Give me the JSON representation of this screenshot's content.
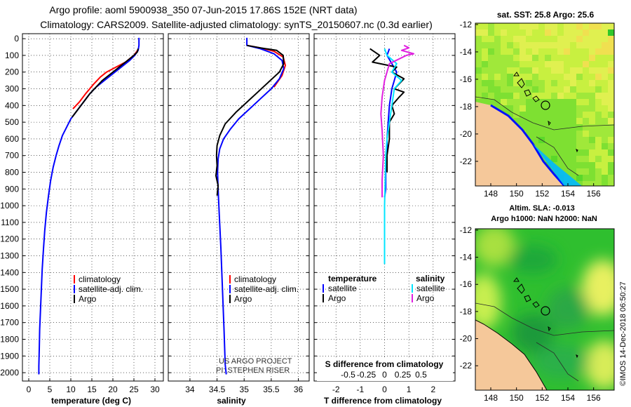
{
  "header": {
    "title_line1": "Argo profile: aoml 5900938_350 07-Jun-2015 17.86S 152E (NRT data)",
    "title_line2": "Climatology: CARS2009. Satellite-adjusted climatology: synTS_20150607.nc (0.3d earlier)"
  },
  "colors": {
    "climatology": "#ff0000",
    "satellite": "#0000ff",
    "argo": "#000000",
    "sal_satellite": "#00e5ff",
    "sal_argo": "#e020e0",
    "land": "#f5c89a",
    "sea_shallow": "#00d8ff"
  },
  "depth_axis": {
    "ticks": [
      0,
      100,
      200,
      300,
      400,
      500,
      600,
      700,
      800,
      900,
      1000,
      1100,
      1200,
      1300,
      1400,
      1500,
      1600,
      1700,
      1800,
      1900,
      2000
    ]
  },
  "chart_data": [
    {
      "type": "line",
      "name": "temperature",
      "xlabel": "temperature (deg C)",
      "xlim": [
        -1.5,
        32
      ],
      "ylim": [
        2050,
        -30
      ],
      "xticks": [
        0,
        5,
        10,
        15,
        20,
        25,
        30
      ],
      "legend": [
        "climatology",
        "satellite-adj. clim.",
        "Argo"
      ],
      "series": [
        {
          "name": "climatology",
          "color": "#ff0000",
          "x": [
            26,
            25,
            24,
            23,
            21.5,
            20,
            18.5,
            17,
            15.5,
            13.5,
            12,
            10.5
          ],
          "y": [
            65,
            100,
            120,
            140,
            160,
            180,
            200,
            230,
            270,
            330,
            380,
            420
          ]
        },
        {
          "name": "satellite-adj. clim.",
          "color": "#0000ff",
          "x": [
            26.2,
            26.2,
            26,
            25.2,
            24,
            22.5,
            21,
            19.5,
            18,
            16,
            14.5,
            13,
            11.5,
            10,
            9,
            8,
            7.2,
            6.5,
            5.8,
            5.2,
            4.7,
            4.2,
            3.8,
            3.5,
            3.2,
            3,
            2.8,
            2.6,
            2.5,
            2.4,
            2.4
          ],
          "y": [
            -5,
            40,
            70,
            100,
            130,
            160,
            190,
            220,
            250,
            290,
            330,
            380,
            430,
            480,
            530,
            580,
            640,
            700,
            770,
            850,
            940,
            1040,
            1150,
            1260,
            1380,
            1500,
            1620,
            1740,
            1860,
            1960,
            2010
          ]
        },
        {
          "name": "Argo",
          "color": "#000000",
          "x": [
            26,
            25.8,
            25,
            23.5,
            22,
            20.5,
            19,
            17.5,
            16,
            14.5,
            13,
            11.5,
            10.3
          ],
          "y": [
            60,
            80,
            100,
            130,
            160,
            190,
            220,
            250,
            290,
            330,
            380,
            430,
            470
          ]
        }
      ]
    },
    {
      "type": "line",
      "name": "salinity",
      "xlabel": "salinity",
      "xlim": [
        33.6,
        36.2
      ],
      "ylim": [
        2050,
        -30
      ],
      "xticks": [
        34,
        34.5,
        35,
        35.5,
        36
      ],
      "xtick_labels": [
        "34",
        "34.5",
        "35",
        "35.5",
        "36"
      ],
      "legend": [
        "climatology",
        "satellite-adj. clim.",
        "Argo"
      ],
      "credits": [
        "US ARGO PROJECT",
        "PI: STEPHEN RISER"
      ],
      "series": [
        {
          "name": "climatology",
          "color": "#ff0000",
          "x": [
            35.05,
            35.3,
            35.55,
            35.72,
            35.76,
            35.7,
            35.55
          ],
          "y": [
            40,
            55,
            75,
            110,
            160,
            220,
            290
          ]
        },
        {
          "name": "satellite-adj. clim.",
          "color": "#0000ff",
          "x": [
            35.05,
            35.05,
            35.3,
            35.55,
            35.7,
            35.73,
            35.65,
            35.5,
            35.3,
            35.1,
            34.9,
            34.75,
            34.62,
            34.55,
            34.52,
            34.51,
            34.52,
            34.54,
            34.57,
            34.6,
            34.63,
            34.65,
            34.67
          ],
          "y": [
            -5,
            40,
            60,
            90,
            130,
            180,
            240,
            300,
            360,
            420,
            480,
            540,
            600,
            660,
            720,
            800,
            900,
            1050,
            1250,
            1500,
            1750,
            1950,
            2010
          ]
        },
        {
          "name": "Argo",
          "color": "#000000",
          "x": [
            35.05,
            35.3,
            35.6,
            35.72,
            35.73,
            35.65,
            35.45,
            35.25,
            35.05,
            34.85,
            34.65,
            34.55,
            34.5,
            34.49,
            34.5,
            34.48,
            34.52,
            34.5
          ],
          "y": [
            40,
            55,
            70,
            100,
            150,
            200,
            260,
            320,
            380,
            440,
            510,
            580,
            640,
            700,
            760,
            820,
            880,
            940
          ]
        }
      ]
    },
    {
      "type": "line",
      "name": "difference",
      "xlabel": "T difference from climatology",
      "xlabel_top": "S difference from climatology",
      "xlim": [
        -2.9,
        2.9
      ],
      "ylim": [
        2050,
        -30
      ],
      "xticks": [
        -2,
        -1,
        0,
        1,
        2
      ],
      "top_ticks": [
        "-0.5",
        "-0.25",
        "0",
        "0.25",
        "0.5"
      ],
      "legend_headers": [
        "temperature",
        "salinity"
      ],
      "legend_left": [
        "satellite",
        "Argo"
      ],
      "legend_right": [
        "satellite",
        "Argo"
      ],
      "series": [
        {
          "name": "T satellite",
          "color": "#0000ff",
          "x": [
            0.2,
            0.1,
            0.3,
            0.5,
            0.4,
            0.3,
            0.25,
            0.2,
            0.15,
            0.1,
            0.1,
            0.05,
            0.05,
            0
          ],
          "y": [
            60,
            100,
            150,
            200,
            250,
            300,
            350,
            400,
            500,
            600,
            700,
            800,
            900,
            950
          ]
        },
        {
          "name": "T Argo",
          "color": "#000000",
          "x": [
            -0.6,
            -0.2,
            -0.5,
            0.5,
            0.3,
            0.8,
            0.6,
            0.4,
            0.8,
            0.6,
            0.3,
            0.4,
            0.2,
            0.2,
            0.1,
            0.1
          ],
          "y": [
            60,
            100,
            140,
            170,
            200,
            240,
            270,
            300,
            320,
            350,
            400,
            450,
            500,
            600,
            700,
            800
          ]
        },
        {
          "name": "S satellite",
          "color": "#00e5ff",
          "x": [
            0,
            0.1,
            0.5,
            0.3,
            0.7,
            0.4,
            0.3,
            0.2,
            0.1,
            0.05,
            0,
            0
          ],
          "y": [
            60,
            100,
            150,
            200,
            250,
            300,
            400,
            500,
            600,
            700,
            1000,
            1350
          ]
        },
        {
          "name": "S Argo",
          "color": "#e020e0",
          "x": [
            0.8,
            1.0,
            0.7,
            1.2,
            0.9,
            0.2,
            0.0,
            -0.1,
            -0.15,
            -0.1,
            -0.05,
            -0.1,
            -0.1
          ],
          "y": [
            40,
            55,
            70,
            90,
            100,
            150,
            250,
            350,
            450,
            550,
            700,
            850,
            950
          ]
        }
      ]
    },
    {
      "type": "heatmap",
      "name": "sst map",
      "title": "sat. SST: 25.8 Argo: 25.6",
      "xticks": [
        148,
        150,
        152,
        154,
        156
      ],
      "yticks": [
        -12,
        -14,
        -16,
        -18,
        -20,
        -22
      ],
      "xlim": [
        146.8,
        157.6
      ],
      "ylim": [
        -23.8,
        -11.9
      ]
    },
    {
      "type": "heatmap",
      "name": "sla map",
      "title": "Altim. SLA: -0.013",
      "subtitle": "Argo h1000: NaN h2000: NaN",
      "xticks": [
        148,
        150,
        152,
        154,
        156
      ],
      "yticks": [
        -12,
        -14,
        -16,
        -18,
        -20,
        -22
      ],
      "xlim": [
        146.8,
        157.6
      ],
      "ylim": [
        -23.8,
        -11.9
      ]
    }
  ],
  "stamp": "©IMOS 14-Dec-2018 06:50:27"
}
